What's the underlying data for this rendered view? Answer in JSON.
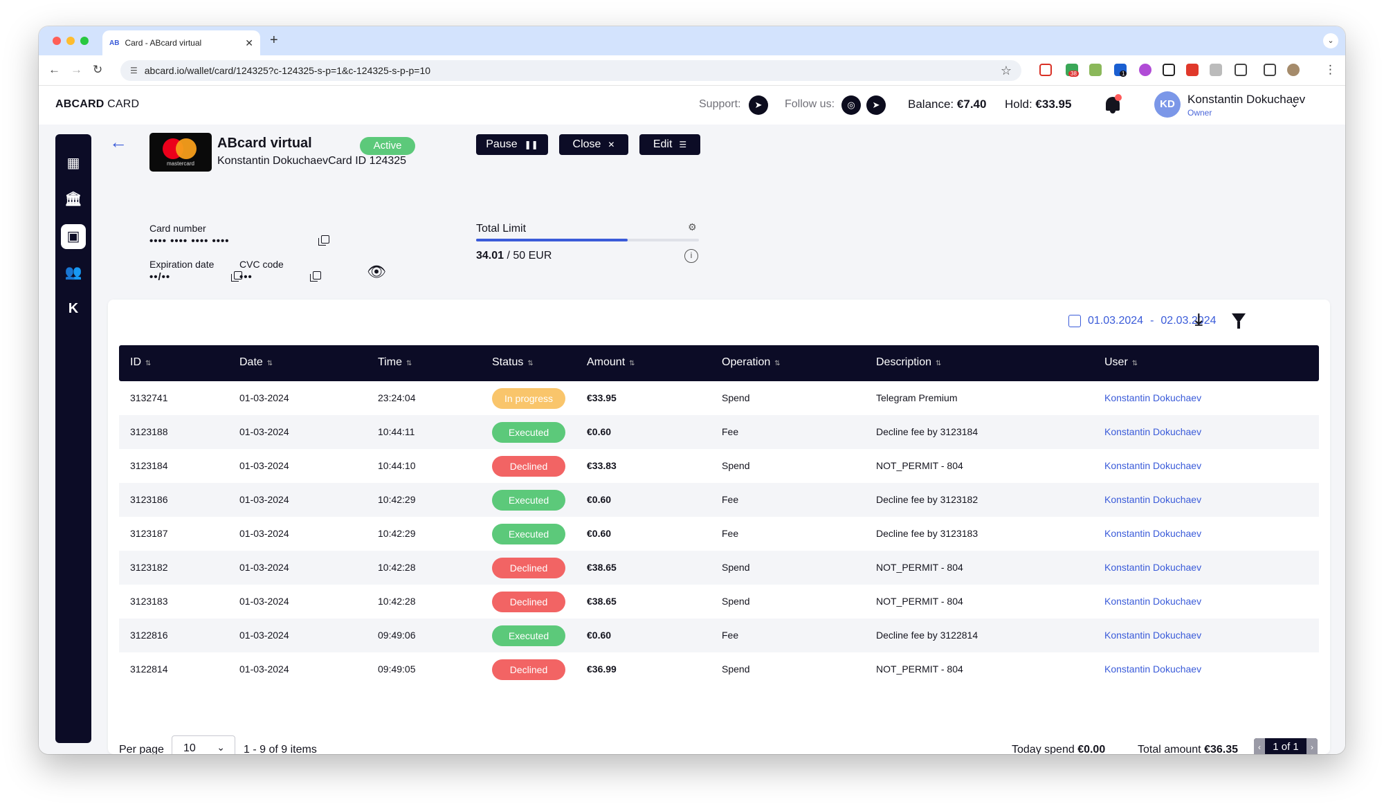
{
  "browser": {
    "tab_title": "Card - ABcard virtual",
    "tab_favicon": "AB",
    "tab_close": "✕",
    "new_tab": "+",
    "url": "abcard.io/wallet/card/124325?c-124325-s-p=1&c-124325-s-p-p=10",
    "extension_badge": "38",
    "extension_badge2": "1"
  },
  "header": {
    "logo_bold": "ABCARD",
    "logo_rest": " CARD",
    "support_label": "Support:",
    "follow_label": "Follow us:",
    "balance_label": "Balance:",
    "balance_value": "€7.40",
    "hold_label": "Hold:",
    "hold_value": "€33.95",
    "user_initials": "KD",
    "user_name": "Konstantin Dokuchaev",
    "user_role": "Owner"
  },
  "sidebar": {
    "items": [
      {
        "name": "dashboard-icon",
        "glyph": "▦"
      },
      {
        "name": "bank-icon",
        "glyph": "🏛"
      },
      {
        "name": "wallet-icon",
        "glyph": "▣",
        "active": true
      },
      {
        "name": "team-icon",
        "glyph": "👥"
      },
      {
        "name": "k-icon",
        "glyph": "K"
      }
    ]
  },
  "card": {
    "brand_text": "mastercard",
    "title": "ABcard virtual",
    "subtitle": "Konstantin DokuchaevCard ID 124325",
    "status": "Active",
    "number_label": "Card number",
    "number_masked": "•••• •••• •••• ••••",
    "expiry_label": "Expiration date",
    "expiry_masked": "••/••",
    "cvc_label": "CVC code",
    "cvc_masked": "•••"
  },
  "actions": {
    "pause": "Pause",
    "close": "Close",
    "edit": "Edit"
  },
  "limit": {
    "label": "Total Limit",
    "used": "34.01",
    "total_text": " / 50 EUR",
    "fraction": 0.6802
  },
  "table": {
    "date_from": "01.03.2024",
    "date_sep": "-",
    "date_to": "02.03.2024",
    "columns": [
      "ID",
      "Date",
      "Time",
      "Status",
      "Amount",
      "Operation",
      "Description",
      "User"
    ],
    "rows": [
      {
        "id": "3132741",
        "date": "01-03-2024",
        "time": "23:24:04",
        "status": "In progress",
        "amount": "€33.95",
        "operation": "Spend",
        "description": "Telegram Premium",
        "user": "Konstantin Dokuchaev"
      },
      {
        "id": "3123188",
        "date": "01-03-2024",
        "time": "10:44:11",
        "status": "Executed",
        "amount": "€0.60",
        "operation": "Fee",
        "description": "Decline fee by 3123184",
        "user": "Konstantin Dokuchaev"
      },
      {
        "id": "3123184",
        "date": "01-03-2024",
        "time": "10:44:10",
        "status": "Declined",
        "amount": "€33.83",
        "operation": "Spend",
        "description": "NOT_PERMIT - 804",
        "user": "Konstantin Dokuchaev"
      },
      {
        "id": "3123186",
        "date": "01-03-2024",
        "time": "10:42:29",
        "status": "Executed",
        "amount": "€0.60",
        "operation": "Fee",
        "description": "Decline fee by 3123182",
        "user": "Konstantin Dokuchaev"
      },
      {
        "id": "3123187",
        "date": "01-03-2024",
        "time": "10:42:29",
        "status": "Executed",
        "amount": "€0.60",
        "operation": "Fee",
        "description": "Decline fee by 3123183",
        "user": "Konstantin Dokuchaev"
      },
      {
        "id": "3123182",
        "date": "01-03-2024",
        "time": "10:42:28",
        "status": "Declined",
        "amount": "€38.65",
        "operation": "Spend",
        "description": "NOT_PERMIT - 804",
        "user": "Konstantin Dokuchaev"
      },
      {
        "id": "3123183",
        "date": "01-03-2024",
        "time": "10:42:28",
        "status": "Declined",
        "amount": "€38.65",
        "operation": "Spend",
        "description": "NOT_PERMIT - 804",
        "user": "Konstantin Dokuchaev"
      },
      {
        "id": "3122816",
        "date": "01-03-2024",
        "time": "09:49:06",
        "status": "Executed",
        "amount": "€0.60",
        "operation": "Fee",
        "description": "Decline fee by 3122814",
        "user": "Konstantin Dokuchaev"
      },
      {
        "id": "3122814",
        "date": "01-03-2024",
        "time": "09:49:05",
        "status": "Declined",
        "amount": "€36.99",
        "operation": "Spend",
        "description": "NOT_PERMIT - 804",
        "user": "Konstantin Dokuchaev"
      }
    ],
    "status_colors": {
      "In progress": "#f9c56b",
      "Executed": "#5cc97a",
      "Declined": "#f26464"
    }
  },
  "footer": {
    "per_page_label": "Per page",
    "per_page_value": "10",
    "items_text": "1 - 9 of 9 items",
    "today_label": "Today spend",
    "today_value": "€0.00",
    "total_label": "Total amount",
    "total_value": "€36.35",
    "page_text": "1 of 1"
  }
}
